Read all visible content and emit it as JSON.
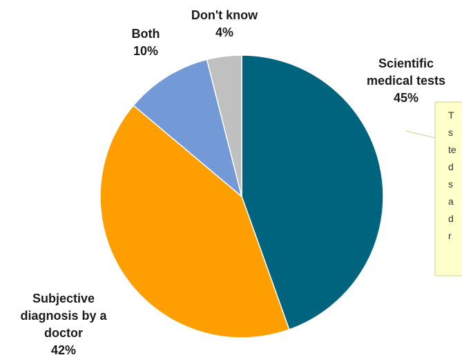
{
  "chart_data": {
    "type": "pie",
    "title": "",
    "slices": [
      {
        "label": "Scientific medical tests",
        "label_lines": [
          "Scientific",
          "medical tests"
        ],
        "value": 45,
        "value_text": "45%",
        "color": "#00647f"
      },
      {
        "label": "Subjective diagnosis by a doctor",
        "label_lines": [
          "Subjective",
          "diagnosis by a",
          "doctor"
        ],
        "value": 42,
        "value_text": "42%",
        "color": "#ff9e00"
      },
      {
        "label": "Both",
        "label_lines": [
          "Both"
        ],
        "value": 10,
        "value_text": "10%",
        "color": "#7399d6"
      },
      {
        "label": "Don't know",
        "label_lines": [
          "Don't know"
        ],
        "value": 4,
        "value_text": "4%",
        "color": "#c0c0c0"
      }
    ],
    "start_angle_deg": 0,
    "direction": "clockwise"
  },
  "callout": {
    "lines": [
      "T",
      "s",
      "te",
      "d",
      "s",
      "a",
      "d",
      "r"
    ]
  }
}
